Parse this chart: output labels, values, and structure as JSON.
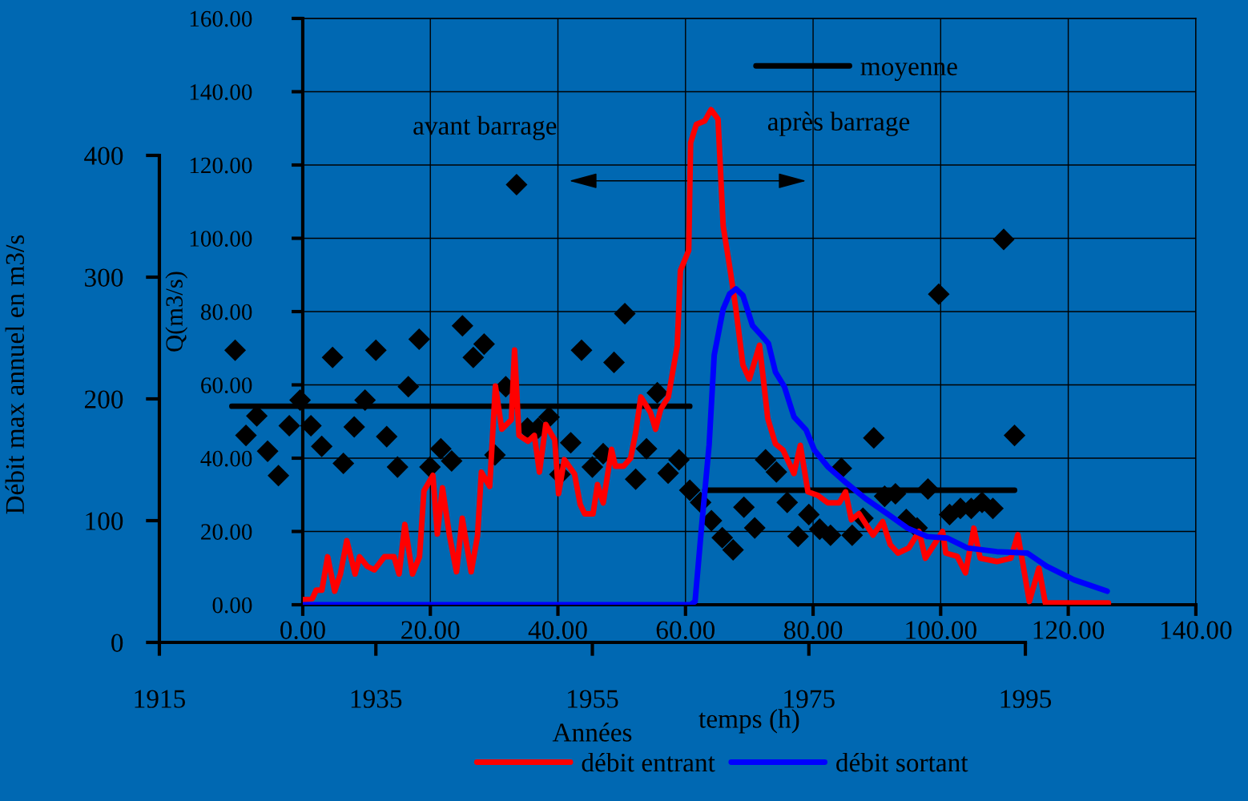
{
  "chart_data": [
    {
      "type": "scatter",
      "xlabel": "Années",
      "ylabel": "Débit max annuel en m3/s",
      "xlim": [
        1915,
        1995
      ],
      "xticks": [
        1915,
        1935,
        1955,
        1975,
        1995
      ],
      "ylim": [
        0,
        400
      ],
      "yticks": [
        0,
        100,
        200,
        300,
        400
      ],
      "legend": "top right",
      "series": [
        {
          "type": "scatter",
          "marker": "diamond",
          "color": "#000000",
          "x": [
            1922,
            1923,
            1924,
            1925,
            1926,
            1927,
            1928,
            1929,
            1930,
            1931,
            1932,
            1933,
            1934,
            1935,
            1936,
            1937,
            1938,
            1939,
            1940,
            1941,
            1942,
            1943,
            1944,
            1945,
            1946,
            1947,
            1948,
            1949,
            1950,
            1951,
            1952,
            1953,
            1954,
            1955,
            1956,
            1957,
            1958,
            1959,
            1960,
            1961,
            1962,
            1963,
            1964,
            1965,
            1966,
            1967,
            1968,
            1969,
            1970,
            1971,
            1972,
            1973,
            1974,
            1975,
            1976,
            1977,
            1978,
            1979,
            1980,
            1981,
            1982,
            1983,
            1984,
            1985,
            1986,
            1987,
            1988,
            1989,
            1990,
            1991,
            1992,
            1993,
            1994
          ],
          "values": [
            240,
            170,
            186,
            157,
            137,
            178,
            199,
            178,
            161,
            234,
            147,
            177,
            199,
            240,
            169,
            144,
            210,
            249,
            144,
            159,
            149,
            260,
            234,
            245,
            154,
            210,
            376,
            176,
            176,
            185,
            138,
            164,
            240,
            144,
            155,
            230,
            270,
            134,
            159,
            205,
            139,
            150,
            125,
            115,
            100,
            86,
            76,
            111,
            94,
            150,
            140,
            115,
            87,
            105,
            93,
            88,
            143,
            88,
            102,
            168,
            120,
            122,
            101,
            94,
            126,
            286,
            105,
            110,
            110,
            115,
            110,
            331,
            170
          ]
        },
        {
          "type": "line",
          "name": "moyenne",
          "marker": "none",
          "line_style": "solid",
          "color": "#000000",
          "x": [
            1921.7,
            1964.0,
            1964.7,
            1965.4,
            1994.0
          ],
          "values": [
            194,
            194,
            null,
            125,
            125
          ]
        }
      ]
    },
    {
      "type": "line",
      "xlabel": "temps (h)",
      "ylabel": "Q(m3/s)",
      "xlim": [
        0,
        140
      ],
      "xticks": [
        {
          "value": 0,
          "label": "0.00"
        },
        {
          "value": 20,
          "label": "20.00"
        },
        {
          "value": 40,
          "label": "40.00"
        },
        {
          "value": 60,
          "label": "60.00"
        },
        {
          "value": 80,
          "label": "80.00"
        },
        {
          "value": 100,
          "label": "100.00"
        },
        {
          "value": 120,
          "label": "120.00"
        },
        {
          "value": 140,
          "label": "140.00"
        }
      ],
      "ylim": [
        0,
        160
      ],
      "yticks": [
        {
          "value": 0,
          "label": "0.00"
        },
        {
          "value": 20,
          "label": "20.00"
        },
        {
          "value": 40,
          "label": "40.00"
        },
        {
          "value": 60,
          "label": "60.00"
        },
        {
          "value": 80,
          "label": "80.00"
        },
        {
          "value": 100,
          "label": "100.00"
        },
        {
          "value": 120,
          "label": "120.00"
        },
        {
          "value": 140,
          "label": "140.00"
        },
        {
          "value": 160,
          "label": "160.00"
        }
      ],
      "grid": true,
      "legend": "bottom",
      "line_style": "solid",
      "annotations": [
        "avant barrage",
        "après barrage"
      ],
      "series": [
        {
          "name": "débit entrant",
          "color": "#ff0000",
          "x": [
            0.1,
            1.5,
            2.1,
            3.0,
            3.9,
            5.0,
            5.9,
            6.9,
            8.2,
            8.9,
            10.1,
            11.2,
            12.8,
            14.3,
            15.1,
            16.0,
            17.2,
            18.3,
            19.0,
            20.4,
            21.1,
            21.9,
            23.0,
            24.1,
            25.0,
            26.4,
            27.4,
            28.0,
            29.3,
            30.2,
            31.2,
            32.7,
            33.2,
            33.9,
            35.3,
            36.3,
            37.1,
            38.1,
            39.5,
            40.1,
            41.0,
            42.6,
            43.5,
            44.2,
            45.5,
            46.2,
            47.1,
            48.4,
            49.0,
            50.3,
            51.4,
            52.2,
            53.0,
            54.5,
            55.3,
            56.1,
            57.3,
            58.7,
            59.2,
            60.5,
            60.8,
            61.7,
            63.0,
            64.0,
            65.1,
            65.9,
            66.9,
            67.9,
            69.0,
            70.0,
            71.6,
            72.9,
            74.1,
            75.3,
            77.0,
            78.0,
            79.2,
            80.7,
            82.3,
            84.1,
            85.1,
            86.0,
            87.2,
            89.4,
            90.9,
            92.1,
            93.3,
            95.0,
            96.6,
            97.6,
            100.3,
            100.8,
            102.6,
            103.9,
            105.2,
            106.2,
            108.8,
            111.0,
            112.1,
            113.9,
            115.4,
            116.4,
            126.3
          ],
          "values": [
            1.4,
            1.7,
            4.0,
            4.0,
            13.1,
            3.7,
            8.4,
            17.5,
            8.4,
            13.1,
            10.5,
            9.5,
            13.1,
            13.1,
            8.4,
            21.9,
            8.4,
            13.1,
            31.1,
            35.3,
            19.3,
            31.9,
            18.9,
            9.0,
            23.6,
            9.0,
            18.9,
            36.2,
            32.3,
            59.7,
            47.9,
            50.5,
            69.5,
            46.2,
            44.6,
            46.2,
            36.2,
            49.2,
            45.0,
            30.3,
            39.6,
            35.7,
            27.3,
            24.8,
            24.8,
            32.8,
            27.8,
            42.4,
            37.8,
            37.8,
            40.0,
            47.1,
            56.7,
            52.5,
            47.9,
            53.3,
            56.7,
            70.6,
            91.2,
            96.7,
            126.1,
            131.1,
            132.0,
            135.1,
            132.5,
            103.4,
            92.5,
            80.7,
            65.4,
            61.6,
            70.8,
            50.8,
            43.9,
            42.2,
            35.8,
            43.5,
            30.8,
            29.9,
            27.8,
            27.8,
            30.8,
            23.2,
            24.9,
            19.0,
            22.7,
            16.4,
            14.1,
            15.5,
            20.0,
            12.7,
            20.0,
            14.1,
            13.2,
            8.7,
            20.9,
            12.7,
            11.8,
            12.7,
            19.1,
            0.9,
            10.0,
            0.5,
            0.5
          ]
        },
        {
          "name": "débit sortant",
          "color": "#0000ff",
          "x": [
            0,
            60.8,
            61.5,
            62.5,
            63.7,
            64.5,
            65.9,
            66.9,
            67.9,
            69.0,
            70.5,
            71.9,
            73.0,
            74.1,
            75.5,
            77.0,
            78.9,
            80.2,
            82.3,
            85.3,
            88.2,
            91.9,
            94.8,
            97.9,
            101.0,
            104.2,
            108.8,
            113.6,
            116.6,
            120.9,
            126.1
          ],
          "values": [
            0,
            0,
            0.9,
            20.9,
            43.6,
            68.1,
            80.7,
            84.8,
            86.2,
            84.4,
            76.2,
            73.5,
            71.3,
            63.5,
            59.5,
            51.3,
            47.7,
            42.2,
            37.7,
            33.1,
            29.0,
            24.5,
            20.9,
            18.6,
            18.2,
            15.5,
            14.5,
            14.1,
            10.5,
            6.8,
            3.7
          ]
        }
      ]
    }
  ]
}
